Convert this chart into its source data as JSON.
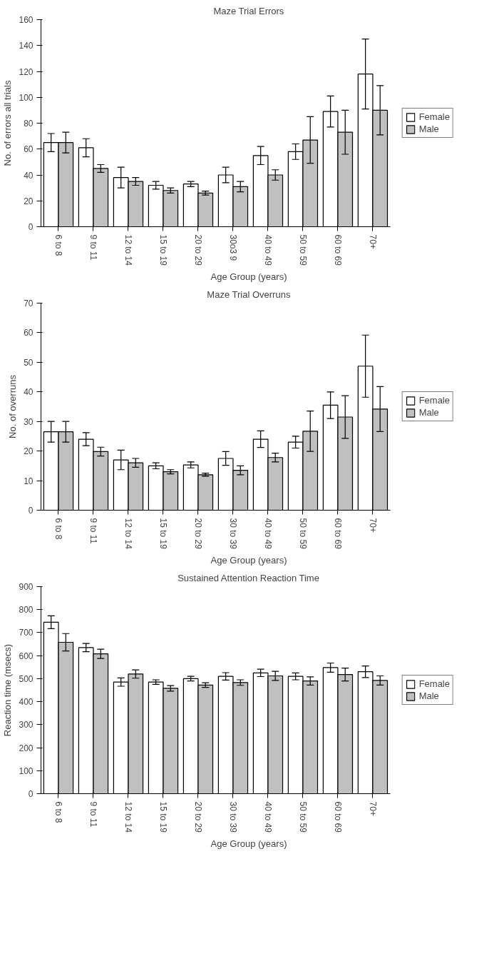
{
  "chart_data": [
    {
      "type": "bar",
      "title": "Maze Trial Errors",
      "xlabel": "Age Group (years)",
      "ylabel": "No. of errors all trials",
      "categories": [
        "6 to 8",
        "9 to 11",
        "12 to 14",
        "15 to 19",
        "20 to 29",
        "30o3 9",
        "40 to 49",
        "50 to 59",
        "60 to 69",
        "70+"
      ],
      "ylim": [
        0,
        160
      ],
      "yticks": [
        0,
        20,
        40,
        60,
        80,
        100,
        120,
        140,
        160
      ],
      "grid": false,
      "legend": "right",
      "series": [
        {
          "name": "Female",
          "color": "#ffffff",
          "values": [
            65,
            61,
            38,
            32,
            33,
            40,
            55,
            58,
            89,
            118
          ],
          "errors": [
            7,
            7,
            8,
            3,
            2,
            6,
            7,
            6,
            12,
            27
          ]
        },
        {
          "name": "Male",
          "color": "#c0c0c0",
          "values": [
            65,
            45,
            35,
            28,
            26,
            31,
            40,
            67,
            73,
            90
          ],
          "errors": [
            8,
            3,
            3,
            2,
            1.5,
            4,
            4,
            18,
            17,
            19
          ]
        }
      ]
    },
    {
      "type": "bar",
      "title": "Maze Trial Overruns",
      "xlabel": "Age Group (years)",
      "ylabel": "No. of overruns",
      "categories": [
        "6 to 8",
        "9 to 11",
        "12 to 14",
        "15 to 19",
        "20 to 29",
        "30 to 39",
        "40 to 49",
        "50 to 59",
        "60 to 69",
        "70+"
      ],
      "ylim": [
        0,
        70
      ],
      "yticks": [
        0,
        10,
        20,
        30,
        40,
        50,
        60,
        70
      ],
      "grid": false,
      "legend": "right",
      "series": [
        {
          "name": "Female",
          "color": "#ffffff",
          "values": [
            26.5,
            24,
            17,
            15,
            15.3,
            17.5,
            24,
            23,
            35.5,
            48.7
          ],
          "errors": [
            3.5,
            2.2,
            3.3,
            1,
            1,
            2.3,
            2.8,
            2,
            4.5,
            10.5
          ]
        },
        {
          "name": "Male",
          "color": "#c0c0c0",
          "values": [
            26.5,
            19.8,
            16,
            13,
            12,
            13.5,
            17.8,
            26.7,
            31.5,
            34.2
          ],
          "errors": [
            3.5,
            1.5,
            1.5,
            0.7,
            0.5,
            1.5,
            1.5,
            6.8,
            7.2,
            7.6
          ]
        }
      ]
    },
    {
      "type": "bar",
      "title": "Sustained Attention Reaction Time",
      "xlabel": "Age Group (years)",
      "ylabel": "Reaction time (msecs)",
      "categories": [
        "6 to 8",
        "9 to 11",
        "12 to 14",
        "15 to 19",
        "20 to 29",
        "30 to 39",
        "40 to 49",
        "50 to 59",
        "60 to 69",
        "70+"
      ],
      "ylim": [
        0,
        900
      ],
      "yticks": [
        0,
        100,
        200,
        300,
        400,
        500,
        600,
        700,
        800,
        900
      ],
      "grid": false,
      "legend": "right",
      "series": [
        {
          "name": "Female",
          "color": "#ffffff",
          "values": [
            745,
            635,
            485,
            485,
            500,
            510,
            525,
            510,
            548,
            530
          ],
          "errors": [
            28,
            18,
            18,
            10,
            10,
            16,
            16,
            15,
            20,
            25
          ]
        },
        {
          "name": "Male",
          "color": "#c0c0c0",
          "values": [
            658,
            608,
            520,
            458,
            472,
            483,
            512,
            490,
            518,
            492
          ],
          "errors": [
            38,
            20,
            18,
            12,
            10,
            12,
            20,
            18,
            28,
            20
          ]
        }
      ]
    }
  ]
}
